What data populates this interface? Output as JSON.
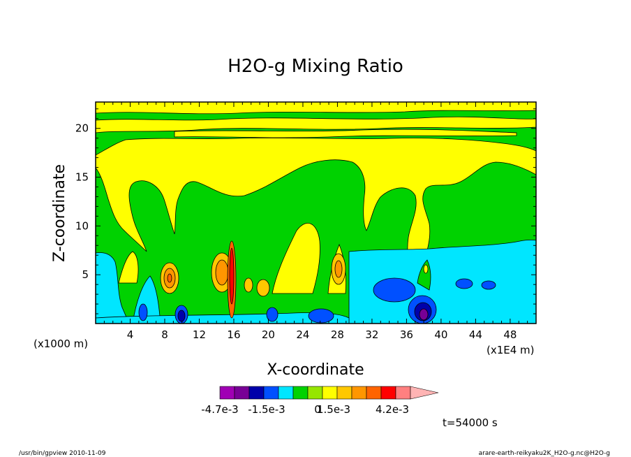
{
  "chart_data": {
    "type": "heatmap",
    "title": "H2O-g Mixing Ratio",
    "xlabel": "X-coordinate",
    "ylabel": "Z-coordinate",
    "x_ticks": [
      "4",
      "8",
      "12",
      "16",
      "20",
      "24",
      "28",
      "32",
      "36",
      "40",
      "44",
      "48"
    ],
    "y_ticks": [
      "5",
      "10",
      "15",
      "20"
    ],
    "x_range": [
      0,
      51
    ],
    "y_range": [
      0,
      22.7
    ],
    "x_scale_note": "(x1E4 m)",
    "y_scale_note": "(x1000 m)",
    "grid": false,
    "colorbar": {
      "labels": [
        "-4.7e-3",
        "-1.5e-3",
        "0",
        "1.5e-3",
        "4.2e-3"
      ],
      "colors": [
        "#a000b4",
        "#780096",
        "#0000aa",
        "#0050ff",
        "#00e6ff",
        "#00d200",
        "#96e600",
        "#ffff00",
        "#ffc800",
        "#ff9600",
        "#ff6400",
        "#ff0000",
        "#ff8080",
        "#ffb4b4"
      ],
      "extend": "max"
    },
    "time_label": "t=54000 s"
  },
  "footer": {
    "left": "/usr/bin/gpview   2010-11-09",
    "right": "arare-earth-reikyaku2K_H2O-g.nc@H2O-g"
  }
}
